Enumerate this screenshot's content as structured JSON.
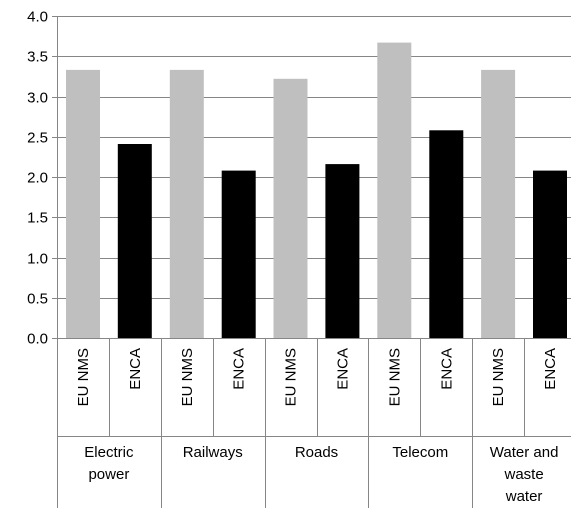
{
  "chart_data": {
    "type": "bar",
    "title": "",
    "xlabel": "",
    "ylabel": "",
    "ylim": [
      0,
      4.0
    ],
    "ytick_step": 0.5,
    "ytick_labels": [
      "0.0",
      "0.5",
      "1.0",
      "1.5",
      "2.0",
      "2.5",
      "3.0",
      "3.5",
      "4.0"
    ],
    "grid": true,
    "legend": "none",
    "groups": [
      {
        "label_lines": [
          "Electric",
          "power"
        ]
      },
      {
        "label_lines": [
          "Railways"
        ]
      },
      {
        "label_lines": [
          "Roads"
        ]
      },
      {
        "label_lines": [
          "Telecom"
        ]
      },
      {
        "label_lines": [
          "Water and",
          "waste",
          "water"
        ]
      }
    ],
    "categories": [
      "EU NMS",
      "ENCA",
      "EU NMS",
      "ENCA",
      "EU NMS",
      "ENCA",
      "EU NMS",
      "ENCA",
      "EU NMS",
      "ENCA"
    ],
    "values": [
      3.33,
      2.41,
      3.33,
      2.08,
      3.22,
      2.16,
      3.67,
      2.58,
      3.33,
      2.08
    ],
    "bar_colors": {
      "EU NMS": "#bfbfbf",
      "ENCA": "#000000"
    }
  }
}
